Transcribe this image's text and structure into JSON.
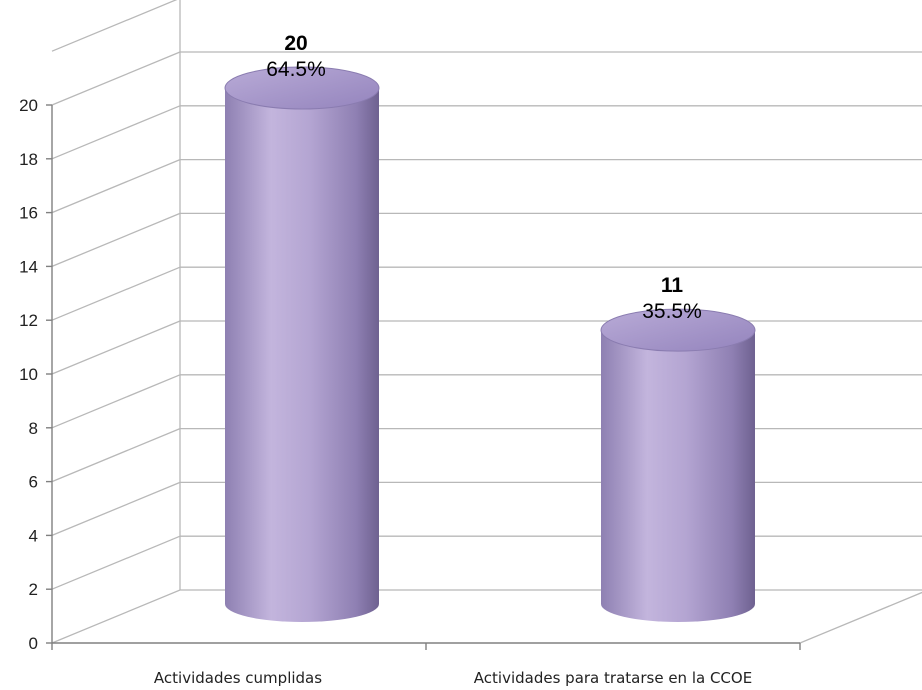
{
  "chart_data": {
    "type": "bar",
    "style": "3d-cylinder",
    "categories": [
      "Actividades cumplidas",
      "Actividades para tratarse en la CCOE"
    ],
    "values": [
      20,
      11
    ],
    "percent_labels": [
      "64.5%",
      "35.5%"
    ],
    "value_labels": [
      "20",
      "11"
    ],
    "title": "",
    "xlabel": "",
    "ylabel": "",
    "ylim": [
      0,
      20
    ],
    "yticks": [
      "0",
      "2",
      "4",
      "6",
      "8",
      "10",
      "12",
      "14",
      "16",
      "18",
      "20"
    ],
    "grid": true,
    "legend": "none",
    "colors": {
      "bar_light": "#c2b3dc",
      "bar_mid": "#a797c9",
      "bar_dark": "#6e6190",
      "bar_top": "#a595c8",
      "grid": "#b8b8b8",
      "axis": "#808080"
    }
  }
}
